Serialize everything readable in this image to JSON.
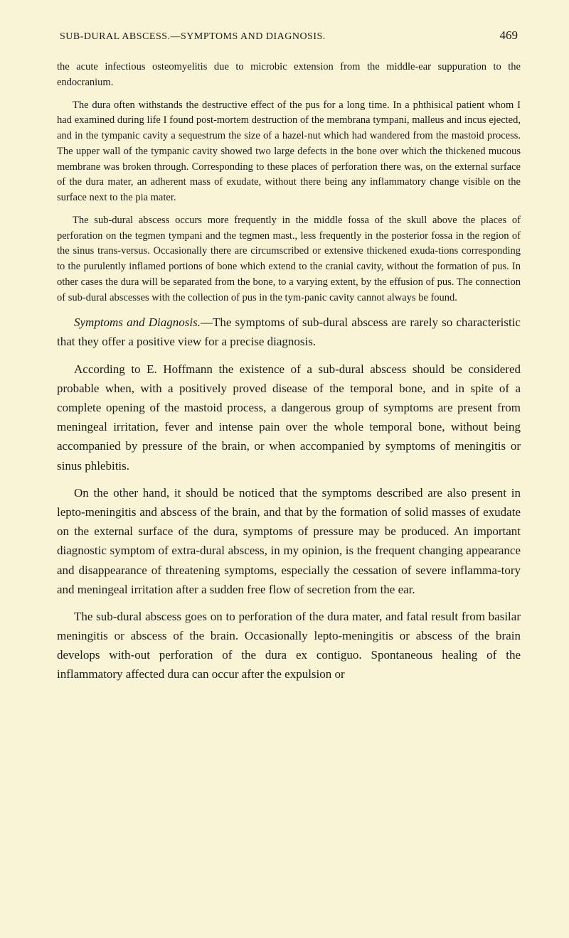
{
  "header": {
    "title": "SUB-DURAL ABSCESS.—SYMPTOMS AND DIAGNOSIS.",
    "page_number": "469"
  },
  "paragraphs": {
    "p1": "the acute infectious osteomyelitis due to microbic extension from the middle-ear suppuration to the endocranium.",
    "p2": "The dura often withstands the destructive effect of the pus for a long time. In a phthisical patient whom I had examined during life I found post-mortem destruction of the membrana tympani, malleus and incus ejected, and in the tympanic cavity a sequestrum the size of a hazel-nut which had wandered from the mastoid process. The upper wall of the tympanic cavity showed two large defects in the bone over which the thickened mucous membrane was broken through. Corresponding to these places of perforation there was, on the external surface of the dura mater, an adherent mass of exudate, without there being any inflammatory change visible on the surface next to the pia mater.",
    "p3": "The sub-dural abscess occurs more frequently in the middle fossa of the skull above the places of perforation on the tegmen tympani and the tegmen mast., less frequently in the posterior fossa in the region of the sinus trans-versus. Occasionally there are circumscribed or extensive thickened exuda-tions corresponding to the purulently inflamed portions of bone which extend to the cranial cavity, without the formation of pus. In other cases the dura will be separated from the bone, to a varying extent, by the effusion of pus. The connection of sub-dural abscesses with the collection of pus in the tym-panic cavity cannot always be found.",
    "p4_italic": "Symptoms and Diagnosis.",
    "p4_rest": "—The symptoms of sub-dural abscess are rarely so characteristic that they offer a positive view for a precise diagnosis.",
    "p5": "According to E. Hoffmann the existence of a sub-dural abscess should be considered probable when, with a positively proved disease of the temporal bone, and in spite of a complete opening of the mastoid process, a dangerous group of symptoms are present from meningeal irritation, fever and intense pain over the whole temporal bone, without being accompanied by pressure of the brain, or when accompanied by symptoms of meningitis or sinus phlebitis.",
    "p6": "On the other hand, it should be noticed that the symptoms described are also present in lepto-meningitis and abscess of the brain, and that by the formation of solid masses of exudate on the external surface of the dura, symptoms of pressure may be produced. An important diagnostic symptom of extra-dural abscess, in my opinion, is the frequent changing appearance and disappearance of threatening symptoms, especially the cessation of severe inflamma-tory and meningeal irritation after a sudden free flow of secretion from the ear.",
    "p7": "The sub-dural abscess goes on to perforation of the dura mater, and fatal result from basilar meningitis or abscess of the brain. Occasionally lepto-meningitis or abscess of the brain develops with-out perforation of the dura ex contiguo. Spontaneous healing of the inflammatory affected dura can occur after the expulsion or"
  },
  "styling": {
    "background_color": "#f9f4d5",
    "text_color": "#1a1a1a",
    "small_font_size": 14.5,
    "large_font_size": 17,
    "header_font_size": 14,
    "page_number_font_size": 17
  }
}
